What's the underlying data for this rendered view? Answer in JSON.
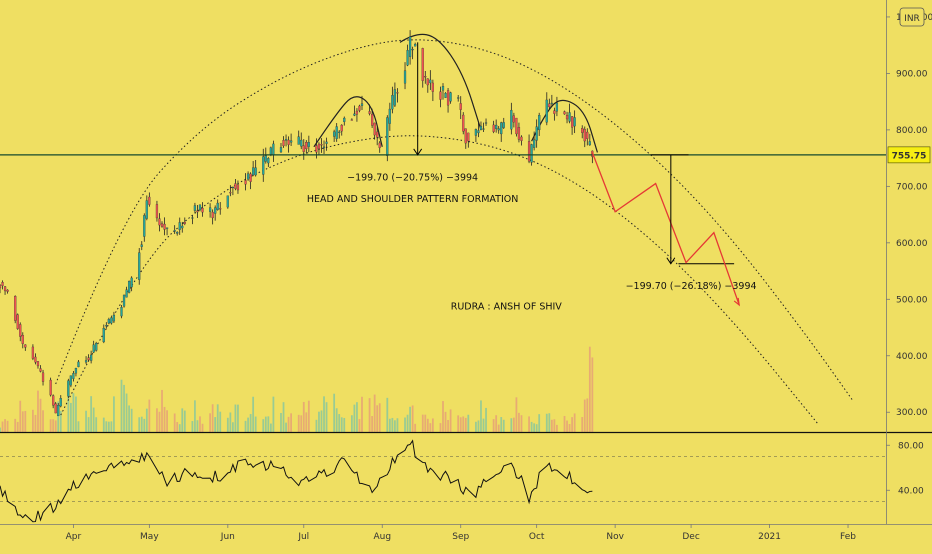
{
  "currency_badge": "INR",
  "chart_data": {
    "type": "candlestick",
    "title": "",
    "y_axis": {
      "ticks": [
        {
          "value": 300,
          "label": "300.00"
        },
        {
          "value": 400,
          "label": "400.00"
        },
        {
          "value": 500,
          "label": "500.00"
        },
        {
          "value": 600,
          "label": "600.00"
        },
        {
          "value": 700,
          "label": "700.00"
        },
        {
          "value": 800,
          "label": "800.00"
        },
        {
          "value": 900,
          "label": "900.00"
        },
        {
          "value": 1000,
          "label": "1000.00"
        }
      ],
      "ylim": [
        265,
        1030
      ]
    },
    "x_axis": {
      "labels": [
        {
          "label": "Apr",
          "date": "2020-04-01"
        },
        {
          "label": "May",
          "date": "2020-05-01"
        },
        {
          "label": "Jun",
          "date": "2020-06-01"
        },
        {
          "label": "Jul",
          "date": "2020-07-01"
        },
        {
          "label": "Aug",
          "date": "2020-08-01"
        },
        {
          "label": "Sep",
          "date": "2020-09-01"
        },
        {
          "label": "Oct",
          "date": "2020-10-01"
        },
        {
          "label": "Nov",
          "date": "2020-11-01"
        },
        {
          "label": "Dec",
          "date": "2020-12-01"
        },
        {
          "label": "2021",
          "date": "2021-01-01"
        },
        {
          "label": "Feb",
          "date": "2021-02-01"
        }
      ],
      "range": [
        "2020-03-03",
        "2021-02-16"
      ]
    },
    "price": {
      "points": [
        [
          "2020-03-03",
          525
        ],
        [
          "2020-03-06",
          505
        ],
        [
          "2020-03-09",
          470
        ],
        [
          "2020-03-12",
          420
        ],
        [
          "2020-03-16",
          400
        ],
        [
          "2020-03-19",
          370
        ],
        [
          "2020-03-23",
          330
        ],
        [
          "2020-03-25",
          295
        ],
        [
          "2020-03-27",
          325
        ],
        [
          "2020-03-31",
          360
        ],
        [
          "2020-04-03",
          385
        ],
        [
          "2020-04-07",
          395
        ],
        [
          "2020-04-13",
          450
        ],
        [
          "2020-04-17",
          470
        ],
        [
          "2020-04-21",
          500
        ],
        [
          "2020-04-24",
          540
        ],
        [
          "2020-04-28",
          605
        ],
        [
          "2020-04-30",
          680
        ],
        [
          "2020-05-04",
          640
        ],
        [
          "2020-05-07",
          625
        ],
        [
          "2020-05-12",
          620
        ],
        [
          "2020-05-15",
          640
        ],
        [
          "2020-05-20",
          660
        ],
        [
          "2020-05-26",
          655
        ],
        [
          "2020-05-29",
          670
        ],
        [
          "2020-06-03",
          700
        ],
        [
          "2020-06-09",
          715
        ],
        [
          "2020-06-15",
          740
        ],
        [
          "2020-06-19",
          765
        ],
        [
          "2020-06-24",
          780
        ],
        [
          "2020-06-29",
          775
        ],
        [
          "2020-07-03",
          770
        ],
        [
          "2020-07-08",
          775
        ],
        [
          "2020-07-13",
          790
        ],
        [
          "2020-07-17",
          815
        ],
        [
          "2020-07-22",
          840
        ],
        [
          "2020-07-27",
          825
        ],
        [
          "2020-07-31",
          762
        ],
        [
          "2020-08-04",
          830
        ],
        [
          "2020-08-07",
          880
        ],
        [
          "2020-08-10",
          910
        ],
        [
          "2020-08-12",
          950
        ],
        [
          "2020-08-14",
          940
        ],
        [
          "2020-08-17",
          895
        ],
        [
          "2020-08-20",
          875
        ],
        [
          "2020-08-25",
          865
        ],
        [
          "2020-08-31",
          845
        ],
        [
          "2020-09-03",
          790
        ],
        [
          "2020-09-07",
          800
        ],
        [
          "2020-09-11",
          815
        ],
        [
          "2020-09-16",
          795
        ],
        [
          "2020-09-21",
          830
        ],
        [
          "2020-09-25",
          780
        ],
        [
          "2020-09-28",
          745
        ],
        [
          "2020-10-02",
          820
        ],
        [
          "2020-10-06",
          845
        ],
        [
          "2020-10-09",
          835
        ],
        [
          "2020-10-13",
          820
        ],
        [
          "2020-10-16",
          810
        ],
        [
          "2020-10-20",
          790
        ],
        [
          "2020-10-23",
          760
        ]
      ]
    },
    "volume": {
      "values": [
        4,
        6,
        8,
        12,
        9,
        7,
        15,
        11,
        8,
        10,
        6,
        9,
        14,
        8,
        7,
        11,
        16,
        9,
        6,
        8,
        5,
        7,
        9,
        6,
        8,
        12,
        7,
        6,
        9,
        5,
        7,
        8,
        6,
        11,
        9,
        7,
        10,
        14,
        12,
        9,
        6,
        8,
        7,
        5,
        6,
        9,
        8,
        7,
        6,
        8,
        5,
        7,
        9,
        6,
        4,
        8,
        6,
        5,
        7,
        9,
        22
      ]
    },
    "rsi": {
      "ticks": [
        {
          "value": 40,
          "label": "40.00"
        },
        {
          "value": 80,
          "label": "80.00"
        }
      ],
      "levels": [
        30,
        70
      ],
      "ylim": [
        10,
        90
      ],
      "points": [
        [
          "2020-03-03",
          38
        ],
        [
          "2020-03-10",
          22
        ],
        [
          "2020-03-20",
          15
        ],
        [
          "2020-03-28",
          35
        ],
        [
          "2020-04-06",
          55
        ],
        [
          "2020-04-15",
          62
        ],
        [
          "2020-04-24",
          70
        ],
        [
          "2020-05-01",
          68
        ],
        [
          "2020-05-08",
          48
        ],
        [
          "2020-05-18",
          58
        ],
        [
          "2020-05-28",
          52
        ],
        [
          "2020-06-08",
          68
        ],
        [
          "2020-06-18",
          62
        ],
        [
          "2020-06-28",
          48
        ],
        [
          "2020-07-08",
          55
        ],
        [
          "2020-07-18",
          66
        ],
        [
          "2020-07-28",
          38
        ],
        [
          "2020-08-06",
          70
        ],
        [
          "2020-08-12",
          82
        ],
        [
          "2020-08-20",
          56
        ],
        [
          "2020-08-30",
          48
        ],
        [
          "2020-09-05",
          36
        ],
        [
          "2020-09-14",
          52
        ],
        [
          "2020-09-22",
          60
        ],
        [
          "2020-09-28",
          34
        ],
        [
          "2020-10-05",
          65
        ],
        [
          "2020-10-12",
          55
        ],
        [
          "2020-10-18",
          46
        ],
        [
          "2020-10-23",
          38
        ]
      ]
    },
    "current_price": {
      "value": 755.75,
      "label": "755.75"
    },
    "lines": [
      {
        "name": "neckline",
        "color": "#154a2c",
        "points": [
          [
            "2020-03-03",
            755.75
          ],
          [
            "2020-12-20",
            755.75
          ]
        ]
      },
      {
        "name": "right-shoulder-measure-top",
        "color": "#000000",
        "points": [
          [
            "2020-11-15",
            755.75
          ],
          [
            "2020-11-30",
            755.75
          ]
        ]
      },
      {
        "name": "target-level",
        "color": "#000000",
        "points": [
          [
            "2020-11-26",
            563
          ],
          [
            "2020-12-18",
            563
          ]
        ]
      },
      {
        "name": "projection-path",
        "color": "#e53935",
        "points": [
          [
            "2020-10-23",
            760
          ],
          [
            "2020-11-01",
            655
          ],
          [
            "2020-11-17",
            705
          ],
          [
            "2020-11-29",
            565
          ],
          [
            "2020-12-10",
            618
          ],
          [
            "2020-12-20",
            490
          ]
        ]
      }
    ],
    "arrows": [
      {
        "name": "head-height-arrow",
        "from": [
          "2020-08-15",
          955
        ],
        "to": [
          "2020-08-15",
          755.75
        ]
      },
      {
        "name": "target-arrow",
        "from": [
          "2020-11-23",
          755.75
        ],
        "to": [
          "2020-11-23",
          563
        ]
      }
    ],
    "curves": [
      {
        "name": "head-arc",
        "style": "solid",
        "points": [
          [
            "2020-08-08",
            955
          ],
          [
            "2020-08-14",
            972
          ],
          [
            "2020-08-23",
            965
          ],
          [
            "2020-09-02",
            900
          ],
          [
            "2020-09-09",
            800
          ]
        ]
      },
      {
        "name": "left-shoulder-arc",
        "style": "solid",
        "points": [
          [
            "2020-07-05",
            770
          ],
          [
            "2020-07-14",
            830
          ],
          [
            "2020-07-21",
            865
          ],
          [
            "2020-07-28",
            845
          ],
          [
            "2020-08-01",
            770
          ]
        ]
      },
      {
        "name": "right-shoulder-arc",
        "style": "solid",
        "points": [
          [
            "2020-09-29",
            780
          ],
          [
            "2020-10-05",
            835
          ],
          [
            "2020-10-11",
            858
          ],
          [
            "2020-10-20",
            835
          ],
          [
            "2020-10-25",
            760
          ]
        ]
      },
      {
        "name": "outer-dotted-arc",
        "style": "dotted",
        "points": [
          [
            "2020-03-25",
            350
          ],
          [
            "2020-04-20",
            650
          ],
          [
            "2020-05-20",
            800
          ],
          [
            "2020-06-20",
            890
          ],
          [
            "2020-07-20",
            945
          ],
          [
            "2020-08-15",
            965
          ],
          [
            "2020-09-15",
            940
          ],
          [
            "2020-10-15",
            870
          ],
          [
            "2020-11-15",
            760
          ],
          [
            "2020-12-15",
            620
          ],
          [
            "2021-01-15",
            440
          ],
          [
            "2021-02-03",
            320
          ]
        ]
      },
      {
        "name": "inner-dotted-arc",
        "style": "dotted",
        "points": [
          [
            "2020-03-27",
            295
          ],
          [
            "2020-04-25",
            555
          ],
          [
            "2020-05-25",
            680
          ],
          [
            "2020-06-25",
            752
          ],
          [
            "2020-07-25",
            786
          ],
          [
            "2020-08-20",
            792
          ],
          [
            "2020-09-20",
            766
          ],
          [
            "2020-10-20",
            700
          ],
          [
            "2020-11-20",
            590
          ],
          [
            "2020-12-20",
            450
          ],
          [
            "2021-01-20",
            280
          ]
        ]
      }
    ],
    "annotations": [
      {
        "name": "head-measure-label",
        "text": "−199.70 (−20.75%) −3994",
        "at": [
          "2020-08-13",
          710
        ]
      },
      {
        "name": "pattern-label",
        "text": "HEAD AND SHOULDER PATTERN FORMATION",
        "at": [
          "2020-08-13",
          672
        ]
      },
      {
        "name": "target-measure-label",
        "text": "−199.70 (−26.18%) −3994",
        "at": [
          "2020-12-01",
          518
        ]
      },
      {
        "name": "author-label",
        "text": "RUDRA : ANSH OF SHIV",
        "at": [
          "2020-09-19",
          482
        ]
      }
    ],
    "colors": {
      "background": "#efdf62",
      "up": "#26a69a",
      "down": "#ef5350",
      "wick": "#222222",
      "projection": "#e53935",
      "neckline": "#154a2c",
      "rsi": "#111111",
      "price_label_bg": "#f6ee14"
    },
    "grid": false
  }
}
